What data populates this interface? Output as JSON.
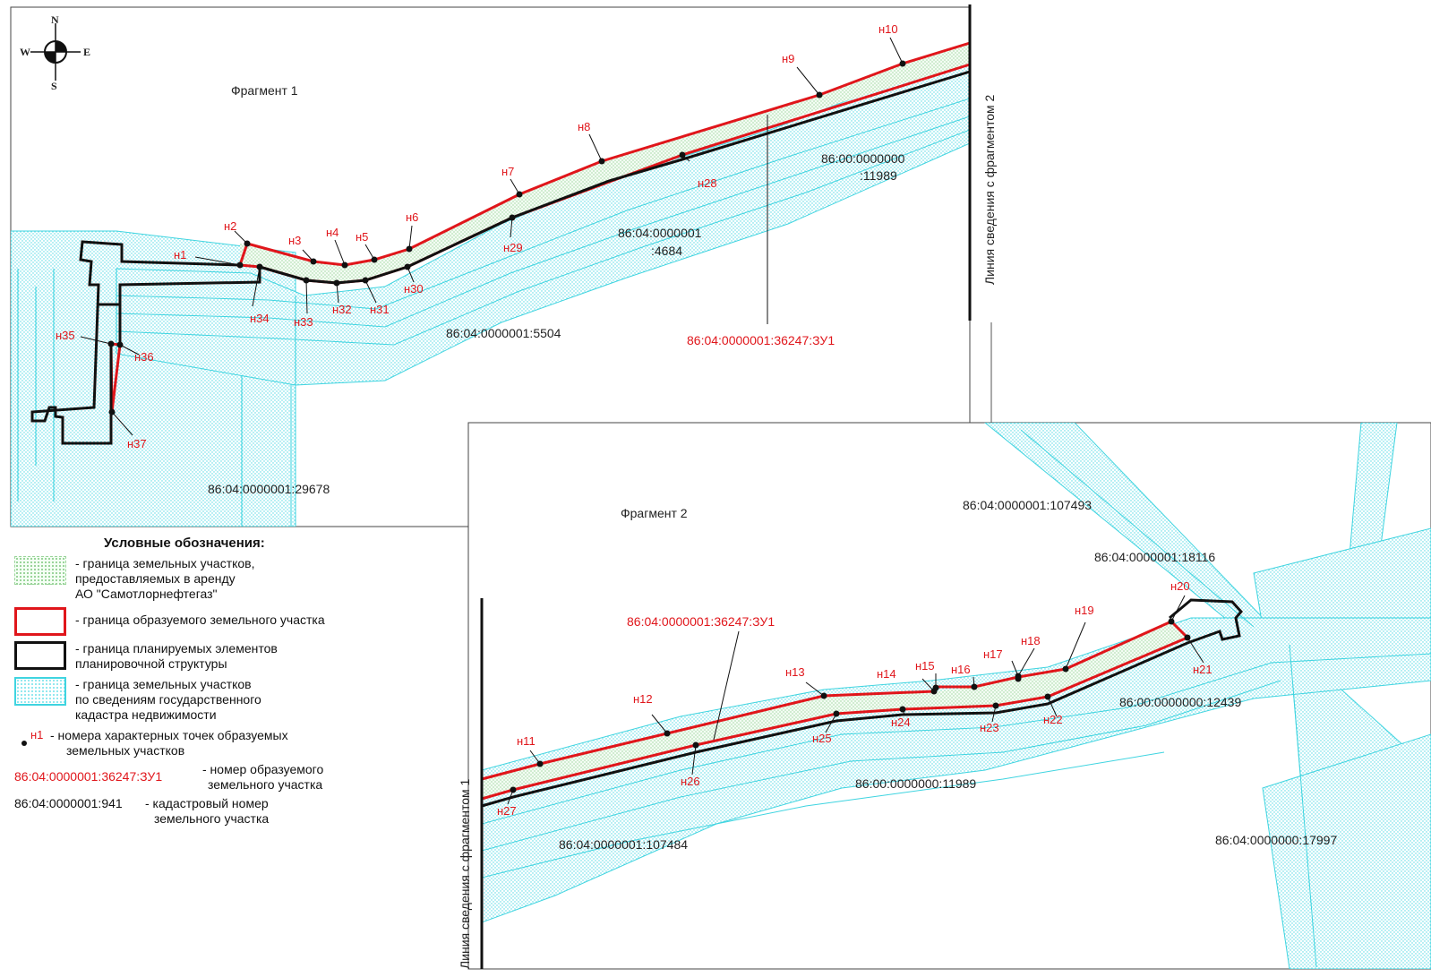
{
  "compass": {
    "n": "N",
    "s": "S",
    "w": "W",
    "e": "E"
  },
  "fragments": {
    "f1_title": "Фрагмент 1",
    "f2_title": "Фрагмент 2",
    "link_to_f2": "Линия сведения с фрагментом 2",
    "link_to_f1": "Линия сведения с фрагментом 1"
  },
  "cadastral_labels": {
    "l_11989_a": "86:00:0000000",
    "l_11989_b": ":11989",
    "l_4684_a": "86:04:0000001",
    "l_4684_b": ":4684",
    "l_5504": "86:04:0000001:5504",
    "l_29678": "86:04:0000001:29678",
    "l_107493": "86:04:0000001:107493",
    "l_18116": "86:04:0000001:18116",
    "l_12439": "86:00:0000000:12439",
    "l_11989_f2": "86:00:0000000:11989",
    "l_107484": "86:04:0000001:107484",
    "l_17997": "86:04:0000000:17997"
  },
  "parcel_labels": {
    "f1": "86:04:0000001:36247:ЗУ1",
    "f2": "86:04:0000001:36247:ЗУ1"
  },
  "points": {
    "n1": "н1",
    "n2": "н2",
    "n3": "н3",
    "n4": "н4",
    "n5": "н5",
    "n6": "н6",
    "n7": "н7",
    "n8": "н8",
    "n9": "н9",
    "n10": "н10",
    "n11": "н11",
    "n12": "н12",
    "n13": "н13",
    "n14": "н14",
    "n15": "н15",
    "n16": "н16",
    "n17": "н17",
    "n18": "н18",
    "n19": "н19",
    "n20": "н20",
    "n21": "н21",
    "n22": "н22",
    "n23": "н23",
    "n24": "н24",
    "n25": "н25",
    "n26": "н26",
    "n27": "н27",
    "n28": "н28",
    "n29": "н29",
    "n30": "н30",
    "n31": "н31",
    "n32": "н32",
    "n33": "н33",
    "n34": "н34",
    "n35": "н35",
    "n36": "н36",
    "n37": "н37"
  },
  "legend": {
    "title": "Условные обозначения:",
    "green": "- граница земельных участков, предоставляемых в аренду АО \"Самотлорнефтегаз\"",
    "green_l1": "- граница земельных участков,",
    "green_l2": "предоставляемых в аренду",
    "green_l3": "АО \"Самотлорнефтегаз\"",
    "red": "- граница образуемого земельного участка",
    "black_l1": "- граница планируемых элементов",
    "black_l2": "планировочной структуры",
    "cyan_l1": "- граница земельных участков",
    "cyan_l2": "по сведениям государственного",
    "cyan_l3": "кадастра недвижимости",
    "pt_label": "н1",
    "pt_l1": "- номера характерных точек образуемых",
    "pt_l2": "земельных участков",
    "num_example": "86:04:0000001:36247:ЗУ1",
    "num_l1": "- номер образуемого",
    "num_l2": "земельного участка",
    "cad_example": "86:04:0000001:941",
    "cad_l1": "- кадастровый номер",
    "cad_l2": "земельного участка"
  },
  "colors": {
    "red": "#e0161b",
    "black": "#111111",
    "cyan": "#3fd4e0",
    "green": "#7cc67c"
  }
}
